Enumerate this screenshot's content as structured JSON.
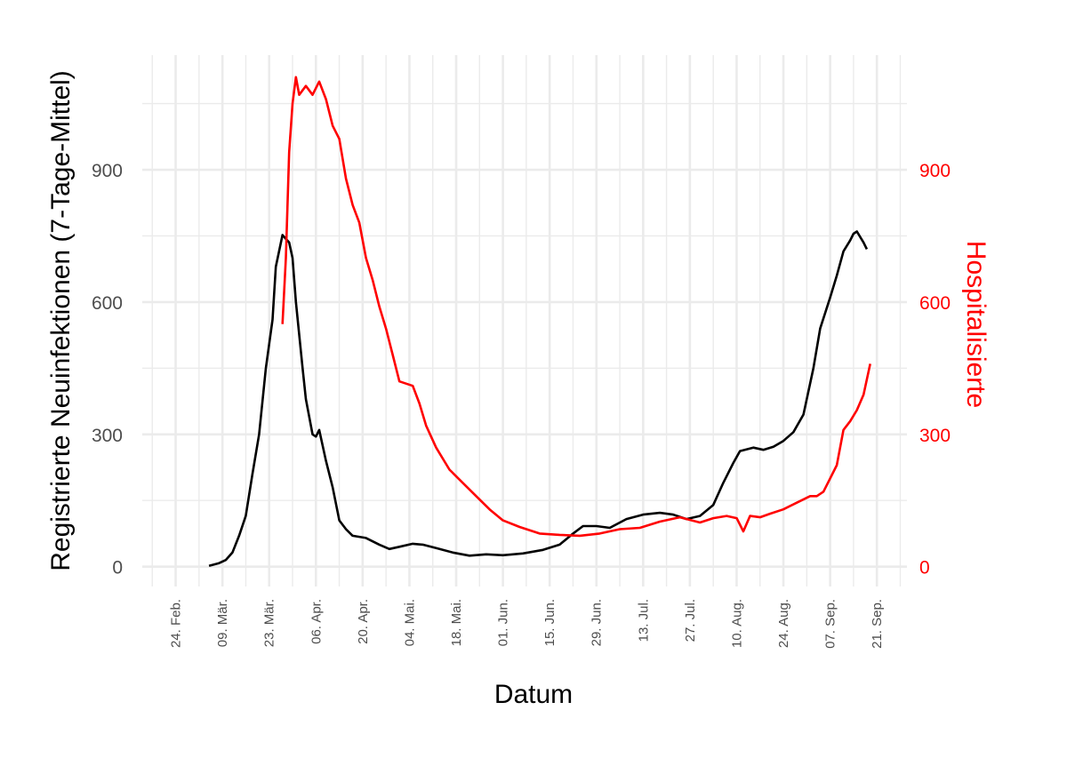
{
  "chart_data": {
    "type": "line",
    "title": "",
    "xlabel": "Datum",
    "ylabel": "Registrierte Neuinfektionen (7-Tage-Mittel)",
    "ylabel_right": "Hospitalisierte",
    "y_ticks": [
      "0",
      "300",
      "600",
      "900"
    ],
    "y_ticks_right": [
      "0",
      "300",
      "600",
      "900"
    ],
    "ylim": [
      -45,
      1160
    ],
    "ylim_right": [
      -45,
      1160
    ],
    "xlim": [
      "2020-02-14",
      "2020-09-30"
    ],
    "x_tick_labels": [
      "24. Feb.",
      "09. Mär.",
      "23. Mär.",
      "06. Apr.",
      "20. Apr.",
      "04. Mai.",
      "18. Mai.",
      "01. Jun.",
      "15. Jun.",
      "29. Jun.",
      "13. Jul.",
      "27. Jul.",
      "10. Aug.",
      "24. Aug.",
      "07. Sep.",
      "21. Sep."
    ],
    "x_ticks": [
      "2020-02-24",
      "2020-03-09",
      "2020-03-23",
      "2020-04-06",
      "2020-04-20",
      "2020-05-04",
      "2020-05-18",
      "2020-06-01",
      "2020-06-15",
      "2020-06-29",
      "2020-07-13",
      "2020-07-27",
      "2020-08-10",
      "2020-08-24",
      "2020-09-07",
      "2020-09-21"
    ],
    "grid": true,
    "colors": {
      "series1": "#000000",
      "series2": "#ff0000",
      "grid": "#ebebeb",
      "tick_text": "#4d4d4d"
    },
    "series": [
      {
        "axis": "left",
        "color": "#000000",
        "points": [
          [
            "2020-03-05",
            2
          ],
          [
            "2020-03-08",
            8
          ],
          [
            "2020-03-10",
            15
          ],
          [
            "2020-03-12",
            32
          ],
          [
            "2020-03-14",
            70
          ],
          [
            "2020-03-16",
            115
          ],
          [
            "2020-03-18",
            210
          ],
          [
            "2020-03-20",
            300
          ],
          [
            "2020-03-22",
            450
          ],
          [
            "2020-03-24",
            560
          ],
          [
            "2020-03-25",
            680
          ],
          [
            "2020-03-27",
            752
          ],
          [
            "2020-03-29",
            735
          ],
          [
            "2020-03-30",
            700
          ],
          [
            "2020-03-31",
            600
          ],
          [
            "2020-04-02",
            450
          ],
          [
            "2020-04-03",
            380
          ],
          [
            "2020-04-05",
            300
          ],
          [
            "2020-04-06",
            295
          ],
          [
            "2020-04-07",
            310
          ],
          [
            "2020-04-09",
            240
          ],
          [
            "2020-04-11",
            180
          ],
          [
            "2020-04-13",
            105
          ],
          [
            "2020-04-15",
            85
          ],
          [
            "2020-04-17",
            70
          ],
          [
            "2020-04-21",
            65
          ],
          [
            "2020-04-25",
            50
          ],
          [
            "2020-04-28",
            40
          ],
          [
            "2020-05-01",
            45
          ],
          [
            "2020-05-05",
            52
          ],
          [
            "2020-05-08",
            50
          ],
          [
            "2020-05-12",
            42
          ],
          [
            "2020-05-17",
            32
          ],
          [
            "2020-05-22",
            25
          ],
          [
            "2020-05-27",
            28
          ],
          [
            "2020-06-01",
            26
          ],
          [
            "2020-06-07",
            30
          ],
          [
            "2020-06-13",
            38
          ],
          [
            "2020-06-18",
            50
          ],
          [
            "2020-06-22",
            75
          ],
          [
            "2020-06-25",
            92
          ],
          [
            "2020-06-29",
            92
          ],
          [
            "2020-07-03",
            88
          ],
          [
            "2020-07-08",
            108
          ],
          [
            "2020-07-13",
            118
          ],
          [
            "2020-07-18",
            122
          ],
          [
            "2020-07-22",
            118
          ],
          [
            "2020-07-26",
            108
          ],
          [
            "2020-07-30",
            115
          ],
          [
            "2020-08-03",
            140
          ],
          [
            "2020-08-06",
            190
          ],
          [
            "2020-08-09",
            235
          ],
          [
            "2020-08-11",
            262
          ],
          [
            "2020-08-15",
            270
          ],
          [
            "2020-08-18",
            265
          ],
          [
            "2020-08-21",
            272
          ],
          [
            "2020-08-24",
            285
          ],
          [
            "2020-08-27",
            305
          ],
          [
            "2020-08-30",
            345
          ],
          [
            "2020-09-02",
            450
          ],
          [
            "2020-09-04",
            540
          ],
          [
            "2020-09-07",
            610
          ],
          [
            "2020-09-09",
            660
          ],
          [
            "2020-09-11",
            715
          ],
          [
            "2020-09-13",
            740
          ],
          [
            "2020-09-14",
            755
          ],
          [
            "2020-09-15",
            760
          ],
          [
            "2020-09-17",
            735
          ],
          [
            "2020-09-18",
            720
          ]
        ]
      },
      {
        "axis": "right",
        "color": "#ff0000",
        "points": [
          [
            "2020-03-27",
            550
          ],
          [
            "2020-03-28",
            700
          ],
          [
            "2020-03-29",
            940
          ],
          [
            "2020-03-30",
            1050
          ],
          [
            "2020-03-31",
            1110
          ],
          [
            "2020-04-01",
            1070
          ],
          [
            "2020-04-03",
            1090
          ],
          [
            "2020-04-05",
            1070
          ],
          [
            "2020-04-07",
            1100
          ],
          [
            "2020-04-09",
            1060
          ],
          [
            "2020-04-11",
            1000
          ],
          [
            "2020-04-13",
            970
          ],
          [
            "2020-04-15",
            880
          ],
          [
            "2020-04-17",
            820
          ],
          [
            "2020-04-19",
            780
          ],
          [
            "2020-04-21",
            700
          ],
          [
            "2020-04-23",
            650
          ],
          [
            "2020-04-25",
            590
          ],
          [
            "2020-04-27",
            540
          ],
          [
            "2020-04-29",
            480
          ],
          [
            "2020-05-01",
            420
          ],
          [
            "2020-05-03",
            415
          ],
          [
            "2020-05-05",
            410
          ],
          [
            "2020-05-07",
            370
          ],
          [
            "2020-05-09",
            320
          ],
          [
            "2020-05-12",
            270
          ],
          [
            "2020-05-16",
            220
          ],
          [
            "2020-05-20",
            190
          ],
          [
            "2020-05-24",
            160
          ],
          [
            "2020-05-28",
            130
          ],
          [
            "2020-06-01",
            105
          ],
          [
            "2020-06-06",
            90
          ],
          [
            "2020-06-12",
            75
          ],
          [
            "2020-06-18",
            72
          ],
          [
            "2020-06-24",
            70
          ],
          [
            "2020-06-30",
            75
          ],
          [
            "2020-07-06",
            85
          ],
          [
            "2020-07-12",
            88
          ],
          [
            "2020-07-18",
            102
          ],
          [
            "2020-07-24",
            112
          ],
          [
            "2020-07-30",
            100
          ],
          [
            "2020-08-03",
            110
          ],
          [
            "2020-08-07",
            115
          ],
          [
            "2020-08-10",
            110
          ],
          [
            "2020-08-12",
            80
          ],
          [
            "2020-08-14",
            115
          ],
          [
            "2020-08-17",
            112
          ],
          [
            "2020-08-20",
            120
          ],
          [
            "2020-08-24",
            130
          ],
          [
            "2020-08-28",
            145
          ],
          [
            "2020-09-01",
            160
          ],
          [
            "2020-09-03",
            160
          ],
          [
            "2020-09-05",
            170
          ],
          [
            "2020-09-07",
            200
          ],
          [
            "2020-09-09",
            230
          ],
          [
            "2020-09-11",
            310
          ],
          [
            "2020-09-13",
            330
          ],
          [
            "2020-09-15",
            355
          ],
          [
            "2020-09-17",
            390
          ],
          [
            "2020-09-19",
            460
          ]
        ]
      }
    ]
  }
}
